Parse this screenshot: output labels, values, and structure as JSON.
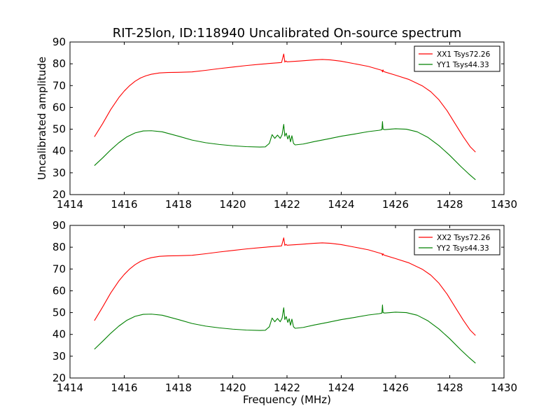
{
  "figure": {
    "title": "RIT-25lon, ID:118940 Uncalibrated On-source spectrum",
    "xlabel": "Frequency (MHz)",
    "ylabel": "Uncalibrated amplitude"
  },
  "chart_data": [
    {
      "type": "line",
      "title": "RIT-25lon, ID:118940 Uncalibrated On-source spectrum",
      "xlabel": "",
      "ylabel": "Uncalibrated amplitude",
      "xlim": [
        1414,
        1430
      ],
      "ylim": [
        20,
        90
      ],
      "xticks": [
        1414,
        1416,
        1418,
        1420,
        1422,
        1424,
        1426,
        1428,
        1430
      ],
      "yticks": [
        20,
        30,
        40,
        50,
        60,
        70,
        80,
        90
      ],
      "grid": false,
      "legend_position": "top-right",
      "series": [
        {
          "name": "XX1 Tsys72.26",
          "color": "#ff0000",
          "x": [
            1414.9,
            1415.2,
            1415.5,
            1415.8,
            1416.0,
            1416.2,
            1416.4,
            1416.6,
            1416.8,
            1417.0,
            1417.3,
            1417.6,
            1418.0,
            1418.5,
            1419.0,
            1419.5,
            1420.0,
            1420.5,
            1421.0,
            1421.5,
            1421.8,
            1421.88,
            1421.92,
            1421.96,
            1422.0,
            1422.5,
            1423.0,
            1423.3,
            1423.6,
            1424.0,
            1424.5,
            1425.0,
            1425.5,
            1425.52,
            1425.54,
            1425.56,
            1425.6,
            1426.0,
            1426.5,
            1427.0,
            1427.3,
            1427.6,
            1427.9,
            1428.2,
            1428.5,
            1428.75,
            1428.95
          ],
          "y": [
            46.5,
            52.5,
            59.0,
            64.5,
            67.5,
            70.0,
            72.0,
            73.5,
            74.5,
            75.2,
            75.8,
            76.0,
            76.1,
            76.3,
            77.0,
            77.8,
            78.5,
            79.2,
            79.8,
            80.3,
            80.6,
            84.5,
            80.8,
            81.3,
            80.9,
            81.3,
            81.8,
            82.0,
            81.8,
            81.2,
            80.0,
            78.8,
            77.0,
            76.3,
            77.2,
            76.5,
            76.3,
            74.8,
            72.8,
            69.8,
            67.2,
            63.5,
            58.5,
            52.5,
            46.5,
            42.0,
            39.5
          ]
        },
        {
          "name": "YY1 Tsys44.33",
          "color": "#008000",
          "x": [
            1414.9,
            1415.2,
            1415.5,
            1415.8,
            1416.1,
            1416.4,
            1416.7,
            1417.0,
            1417.4,
            1418.0,
            1418.5,
            1419.0,
            1419.5,
            1420.0,
            1420.5,
            1421.0,
            1421.2,
            1421.35,
            1421.45,
            1421.55,
            1421.65,
            1421.75,
            1421.82,
            1421.88,
            1421.92,
            1421.97,
            1422.03,
            1422.08,
            1422.13,
            1422.18,
            1422.24,
            1422.3,
            1422.6,
            1423.0,
            1423.5,
            1424.0,
            1424.5,
            1425.0,
            1425.4,
            1425.5,
            1425.52,
            1425.54,
            1425.6,
            1426.0,
            1426.4,
            1426.8,
            1427.2,
            1427.6,
            1428.0,
            1428.4,
            1428.7,
            1428.95
          ],
          "y": [
            33.3,
            36.8,
            40.5,
            43.8,
            46.5,
            48.3,
            49.2,
            49.3,
            48.8,
            46.8,
            45.0,
            43.8,
            43.0,
            42.4,
            42.0,
            41.8,
            41.9,
            43.5,
            47.5,
            45.8,
            47.3,
            45.8,
            47.5,
            52.2,
            46.8,
            48.2,
            45.5,
            47.2,
            44.2,
            47.0,
            43.5,
            42.8,
            43.2,
            44.3,
            45.5,
            46.8,
            47.8,
            48.9,
            49.5,
            49.8,
            53.5,
            50.0,
            49.8,
            50.2,
            50.0,
            48.8,
            46.2,
            42.5,
            38.0,
            33.0,
            29.5,
            26.8
          ]
        }
      ]
    },
    {
      "type": "line",
      "title": "",
      "xlabel": "Frequency (MHz)",
      "ylabel": "",
      "xlim": [
        1414,
        1430
      ],
      "ylim": [
        20,
        90
      ],
      "xticks": [
        1414,
        1416,
        1418,
        1420,
        1422,
        1424,
        1426,
        1428,
        1430
      ],
      "yticks": [
        20,
        30,
        40,
        50,
        60,
        70,
        80,
        90
      ],
      "grid": false,
      "legend_position": "top-right",
      "series": [
        {
          "name": "XX2 Tsys72.26",
          "color": "#ff0000",
          "x": [
            1414.9,
            1415.2,
            1415.5,
            1415.8,
            1416.0,
            1416.2,
            1416.4,
            1416.6,
            1416.8,
            1417.0,
            1417.3,
            1417.6,
            1418.0,
            1418.5,
            1419.0,
            1419.5,
            1420.0,
            1420.5,
            1421.0,
            1421.5,
            1421.8,
            1421.88,
            1421.92,
            1421.96,
            1422.0,
            1422.5,
            1423.0,
            1423.3,
            1423.6,
            1424.0,
            1424.5,
            1425.0,
            1425.5,
            1425.52,
            1425.54,
            1425.56,
            1425.6,
            1426.0,
            1426.5,
            1427.0,
            1427.3,
            1427.6,
            1427.9,
            1428.2,
            1428.5,
            1428.75,
            1428.95
          ],
          "y": [
            46.3,
            52.5,
            59.0,
            64.5,
            67.5,
            70.0,
            72.0,
            73.5,
            74.5,
            75.2,
            75.8,
            76.0,
            76.1,
            76.3,
            77.0,
            77.8,
            78.5,
            79.2,
            79.8,
            80.3,
            80.6,
            84.3,
            80.8,
            81.3,
            80.9,
            81.3,
            81.8,
            82.0,
            81.8,
            81.2,
            80.0,
            78.8,
            77.0,
            76.3,
            77.0,
            76.5,
            76.3,
            74.8,
            72.8,
            69.8,
            67.2,
            63.5,
            58.5,
            52.5,
            46.5,
            42.0,
            39.5
          ]
        },
        {
          "name": "YY2 Tsys44.33",
          "color": "#008000",
          "x": [
            1414.9,
            1415.2,
            1415.5,
            1415.8,
            1416.1,
            1416.4,
            1416.7,
            1417.0,
            1417.4,
            1418.0,
            1418.5,
            1419.0,
            1419.5,
            1420.0,
            1420.5,
            1421.0,
            1421.2,
            1421.35,
            1421.45,
            1421.55,
            1421.65,
            1421.75,
            1421.82,
            1421.88,
            1421.92,
            1421.97,
            1422.03,
            1422.08,
            1422.13,
            1422.18,
            1422.24,
            1422.3,
            1422.6,
            1423.0,
            1423.5,
            1424.0,
            1424.5,
            1425.0,
            1425.4,
            1425.5,
            1425.52,
            1425.54,
            1425.6,
            1426.0,
            1426.4,
            1426.8,
            1427.2,
            1427.6,
            1428.0,
            1428.4,
            1428.7,
            1428.95
          ],
          "y": [
            33.2,
            36.8,
            40.5,
            43.8,
            46.5,
            48.3,
            49.2,
            49.3,
            48.8,
            46.8,
            45.0,
            43.8,
            43.0,
            42.4,
            42.0,
            41.8,
            41.9,
            43.5,
            47.5,
            45.8,
            47.3,
            45.8,
            47.5,
            52.2,
            46.8,
            48.2,
            45.5,
            47.2,
            44.2,
            47.0,
            43.5,
            42.8,
            43.2,
            44.3,
            45.5,
            46.8,
            47.8,
            48.9,
            49.5,
            49.8,
            53.5,
            50.0,
            49.8,
            50.2,
            50.0,
            48.8,
            46.2,
            42.5,
            38.0,
            33.0,
            29.5,
            26.8
          ]
        }
      ]
    }
  ]
}
